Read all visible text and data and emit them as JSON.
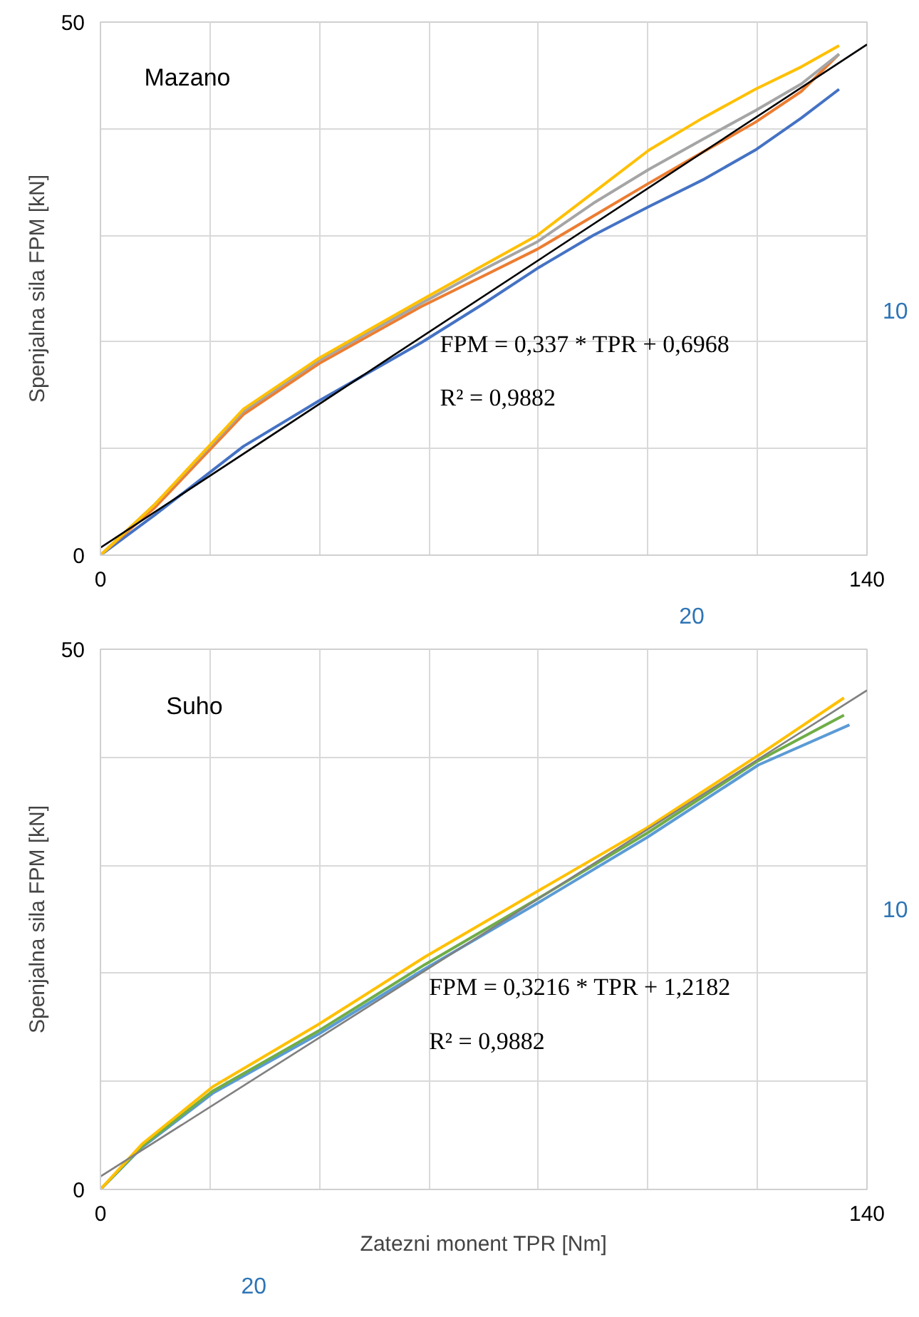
{
  "chart_data": [
    {
      "type": "line",
      "ylabel": "Spenjalna sila FPM [kN]",
      "xlim": [
        0,
        140
      ],
      "ylim": [
        0,
        50
      ],
      "xticks": [
        0,
        {
          "value": 20,
          "label": null
        },
        {
          "value": 40,
          "label": null
        },
        {
          "value": 60,
          "label": null
        },
        {
          "value": 80,
          "label": null
        },
        {
          "value": 100,
          "label": null
        },
        {
          "value": 120,
          "label": null
        },
        140
      ],
      "yticks": [
        0,
        {
          "value": 10,
          "label": null
        },
        {
          "value": 20,
          "label": null
        },
        {
          "value": 30,
          "label": null
        },
        {
          "value": 40,
          "label": null
        },
        50
      ],
      "grid": true,
      "marker": "none",
      "line_style": "solid",
      "annotations": [
        "Mazano",
        "FPM = 0,337 * TPR + 0,6968",
        "R² = 0,9882",
        "10",
        "20"
      ],
      "series": [
        {
          "color": "#4472c4",
          "x": [
            0,
            10,
            26.1,
            40,
            58.5,
            70,
            79.8,
            90,
            100.2,
            110,
            119.6,
            128,
            134.9
          ],
          "values": [
            0,
            3.8,
            10.2,
            14.5,
            19.9,
            23.6,
            26.9,
            30.0,
            32.7,
            35.2,
            38.0,
            41.0,
            43.7
          ]
        },
        {
          "color": "#ed7d31",
          "x": [
            0,
            10,
            26.1,
            40,
            58.5,
            70,
            79.8,
            90,
            100.2,
            110,
            119.6,
            128,
            134.9
          ],
          "values": [
            0,
            4.5,
            13.2,
            18.0,
            23.3,
            26.2,
            28.7,
            31.8,
            34.9,
            37.8,
            40.6,
            43.5,
            47.0
          ]
        },
        {
          "color": "#a5a5a5",
          "x": [
            0,
            10,
            26.1,
            40,
            58.5,
            70,
            79.8,
            90,
            100.2,
            110,
            119.6,
            128,
            134.9
          ],
          "values": [
            0,
            4.8,
            13.5,
            18.3,
            23.6,
            26.8,
            29.4,
            33.0,
            36.2,
            39.0,
            41.7,
            44.2,
            47.0
          ]
        },
        {
          "color": "#ffc000",
          "x": [
            0,
            10,
            26.1,
            40,
            58.5,
            70,
            79.8,
            90,
            100.2,
            110,
            119.6,
            128,
            134.9
          ],
          "values": [
            0,
            4.8,
            13.7,
            18.5,
            23.9,
            27.2,
            30.0,
            34.0,
            38.0,
            41.0,
            43.7,
            45.8,
            47.8
          ]
        },
        {
          "type": "line",
          "color": "#000000",
          "x": [
            0,
            140
          ],
          "values": [
            0.7,
            47.9
          ]
        }
      ]
    },
    {
      "type": "line",
      "xlabel": "Zatezni monent TPR [Nm]",
      "ylabel": "Spenjalna sila FPM [kN]",
      "xlim": [
        0,
        140
      ],
      "ylim": [
        0,
        50
      ],
      "xticks": [
        0,
        {
          "value": 20,
          "label": null
        },
        {
          "value": 40,
          "label": null
        },
        {
          "value": 60,
          "label": null
        },
        {
          "value": 80,
          "label": null
        },
        {
          "value": 100,
          "label": null
        },
        {
          "value": 120,
          "label": null
        },
        140
      ],
      "yticks": [
        0,
        {
          "value": 10,
          "label": null
        },
        {
          "value": 20,
          "label": null
        },
        {
          "value": 30,
          "label": null
        },
        {
          "value": 40,
          "label": null
        },
        50
      ],
      "grid": true,
      "marker": "none",
      "line_style": "solid",
      "annotations": [
        "Suho",
        "FPM = 0,3216 * TPR + 1,2182",
        "R² = 0,9882",
        "10",
        "20"
      ],
      "series": [
        {
          "color": "#5b9bd5",
          "x": [
            0,
            7.6,
            20.5,
            39.9,
            59.2,
            79.5,
            99.9,
            120.2,
            136.8
          ],
          "values": [
            0,
            3.9,
            8.9,
            14.4,
            20.4,
            26.4,
            32.6,
            39.3,
            43.0
          ]
        },
        {
          "color": "#70ad47",
          "x": [
            0,
            7.6,
            20.5,
            39.9,
            59.2,
            79.5,
            99.9,
            120.2,
            135.8
          ],
          "values": [
            0,
            4.0,
            9.1,
            14.7,
            20.8,
            26.8,
            33.0,
            39.7,
            43.9
          ]
        },
        {
          "color": "#ffc000",
          "x": [
            0,
            7.6,
            20.5,
            39.9,
            59.2,
            79.5,
            99.9,
            120.2,
            135.8
          ],
          "values": [
            0,
            4.2,
            9.5,
            15.3,
            21.5,
            27.5,
            33.5,
            40.2,
            45.5
          ]
        },
        {
          "type": "line",
          "color": "#808080",
          "x": [
            0,
            140
          ],
          "values": [
            1.2,
            46.2
          ]
        }
      ]
    }
  ]
}
